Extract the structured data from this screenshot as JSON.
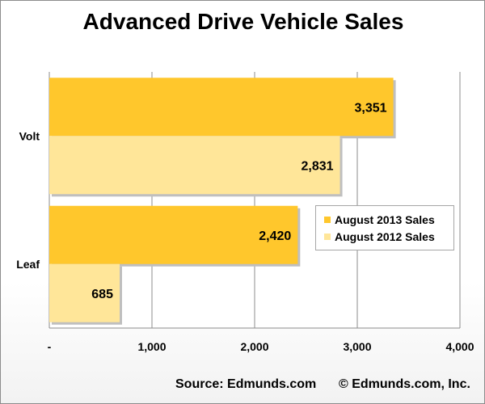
{
  "chart_data": {
    "type": "bar",
    "orientation": "horizontal",
    "title": "Advanced Drive Vehicle Sales",
    "categories": [
      "Volt",
      "Leaf"
    ],
    "series": [
      {
        "name": "August 2013 Sales",
        "values": [
          3351,
          2420
        ],
        "labels": [
          "3,351",
          "2,420"
        ],
        "color": "#FFC72C"
      },
      {
        "name": "August 2012 Sales",
        "values": [
          2831,
          685
        ],
        "labels": [
          "2,831",
          "685"
        ],
        "color": "#FFE699"
      }
    ],
    "xlim": [
      0,
      4000
    ],
    "xticks": [
      0,
      1000,
      2000,
      3000,
      4000
    ],
    "xtick_labels": [
      "-",
      "1,000",
      "2,000",
      "3,000",
      "4,000"
    ],
    "grid": "vertical",
    "legend_position": "right"
  },
  "footer": {
    "source": "Source: Edmunds.com",
    "copyright": "© Edmunds.com, Inc."
  }
}
